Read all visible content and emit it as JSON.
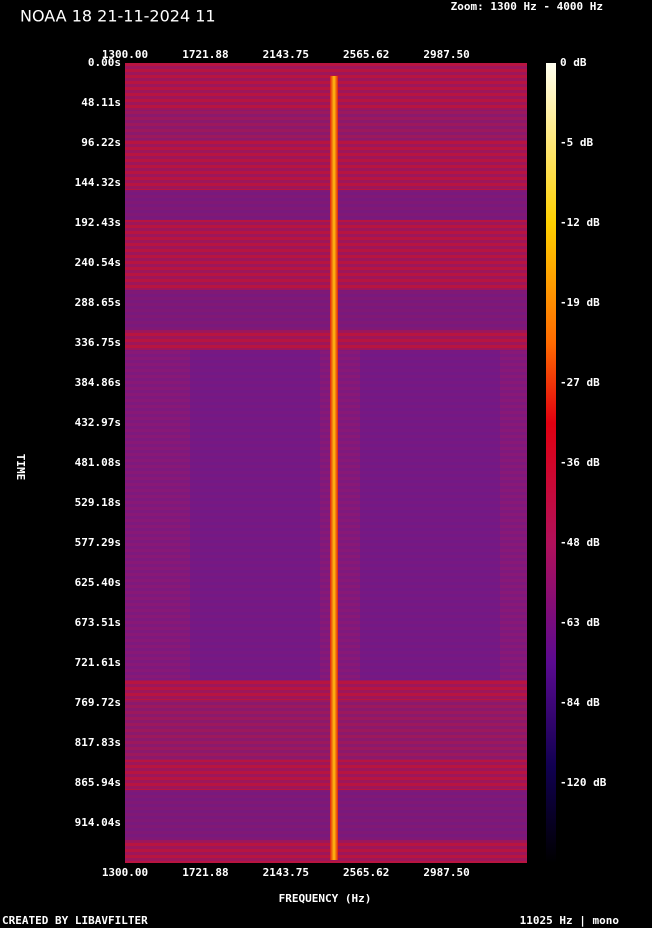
{
  "header": {
    "title": "NOAA 18 21-11-2024 11",
    "zoom": "Zoom: 1300 Hz - 4000 Hz"
  },
  "x_ticks_top": [
    "1300.00",
    "1721.88",
    "2143.75",
    "2565.62",
    "2987.50"
  ],
  "x_ticks_bottom": [
    "1300.00",
    "1721.88",
    "2143.75",
    "2565.62",
    "2987.50"
  ],
  "y_ticks": [
    "0.00s",
    "48.11s",
    "96.22s",
    "144.32s",
    "192.43s",
    "240.54s",
    "288.65s",
    "336.75s",
    "384.86s",
    "432.97s",
    "481.08s",
    "529.18s",
    "577.29s",
    "625.40s",
    "673.51s",
    "721.61s",
    "769.72s",
    "817.83s",
    "865.94s",
    "914.04s"
  ],
  "colorbar_labels": [
    "0 dB",
    "-5 dB",
    "-12 dB",
    "-19 dB",
    "-27 dB",
    "-36 dB",
    "-48 dB",
    "-63 dB",
    "-84 dB",
    "-120 dB"
  ],
  "x_label": "FREQUENCY (Hz)",
  "y_label": "TIME",
  "footer": {
    "left": "CREATED BY LIBAVFILTER",
    "right": "11025 Hz | mono"
  }
}
